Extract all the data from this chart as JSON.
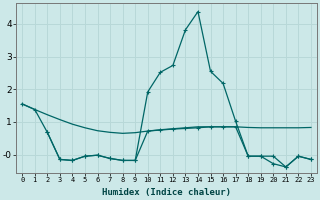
{
  "xlabel": "Humidex (Indice chaleur)",
  "background_color": "#cce8e8",
  "grid_color": "#b8d8d8",
  "line_color": "#006666",
  "xlim": [
    -0.5,
    23.5
  ],
  "ylim": [
    -0.55,
    4.65
  ],
  "yticks": [
    0,
    1,
    2,
    3,
    4
  ],
  "ytick_labels": [
    "-0",
    "1",
    "2",
    "3",
    "4"
  ],
  "xticks": [
    0,
    1,
    2,
    3,
    4,
    5,
    6,
    7,
    8,
    9,
    10,
    11,
    12,
    13,
    14,
    15,
    16,
    17,
    18,
    19,
    20,
    21,
    22,
    23
  ],
  "line1_x": [
    0,
    1,
    2,
    3,
    4,
    5,
    6,
    7,
    8,
    9,
    10,
    11,
    12,
    13,
    14,
    15,
    16,
    17,
    18,
    19,
    20,
    21,
    22,
    23
  ],
  "line1_y": [
    1.55,
    1.38,
    1.22,
    1.07,
    0.93,
    0.82,
    0.73,
    0.68,
    0.65,
    0.67,
    0.72,
    0.76,
    0.79,
    0.82,
    0.85,
    0.85,
    0.85,
    0.85,
    0.83,
    0.82,
    0.82,
    0.82,
    0.82,
    0.83
  ],
  "line2_x": [
    0,
    1,
    2,
    3,
    4,
    5,
    6,
    7,
    8,
    9,
    10,
    11,
    12,
    13,
    14,
    15,
    16,
    17,
    18,
    19,
    20,
    21,
    22,
    23
  ],
  "line2_y": [
    1.55,
    1.38,
    0.68,
    -0.15,
    -0.18,
    -0.05,
    -0.02,
    -0.12,
    -0.18,
    -0.18,
    1.92,
    2.52,
    2.73,
    3.82,
    4.38,
    2.55,
    2.18,
    1.02,
    -0.05,
    -0.05,
    -0.28,
    -0.38,
    -0.05,
    -0.15
  ],
  "line3_x": [
    2,
    3,
    4,
    5,
    6,
    7,
    8,
    9,
    10,
    11,
    12,
    13,
    14,
    15,
    16,
    17,
    18,
    19,
    20,
    21,
    22,
    23
  ],
  "line3_y": [
    0.68,
    -0.15,
    -0.18,
    -0.05,
    -0.02,
    -0.12,
    -0.18,
    -0.18,
    0.72,
    0.75,
    0.78,
    0.8,
    0.82,
    0.85,
    0.85,
    0.85,
    -0.05,
    -0.05,
    -0.05,
    -0.38,
    -0.05,
    -0.15
  ]
}
